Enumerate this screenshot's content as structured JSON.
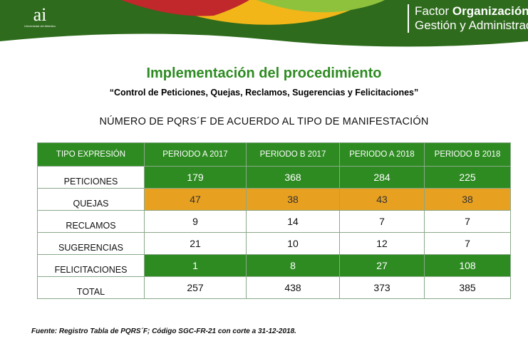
{
  "header": {
    "logo_mark": "ai",
    "logo_subtitle": "Universidad del Atlántico",
    "factor_line1_plain": "Factor ",
    "factor_line1_bold": "Organización,",
    "factor_line2": "Gestión y Administración",
    "colors": {
      "dark_green": "#2e6b1c",
      "light_green": "#8fc23c",
      "red": "#c0282b",
      "yellow": "#f2b619"
    }
  },
  "title": "Implementación del procedimiento",
  "subtitle": "“Control de Peticiones, Quejas, Reclamos,  Sugerencias y Felicitaciones”",
  "table_title": "NÚMERO DE PQRS´F DE ACUERDO AL TIPO DE MANIFESTACIÓN",
  "table": {
    "headers": [
      "TIPO EXPRESIÓN",
      "PERIODO A 2017",
      "PERIODO B 2017",
      "PERIODO A 2018",
      "PERIODO B 2018"
    ],
    "rows": [
      {
        "label": "PETICIONES",
        "values": [
          "179",
          "368",
          "284",
          "225"
        ],
        "highlight": "green"
      },
      {
        "label": "QUEJAS",
        "values": [
          "47",
          "38",
          "43",
          "38"
        ],
        "highlight": "orange"
      },
      {
        "label": "RECLAMOS",
        "values": [
          "9",
          "14",
          "7",
          "7"
        ],
        "highlight": "none"
      },
      {
        "label": "SUGERENCIAS",
        "values": [
          "21",
          "10",
          "12",
          "7"
        ],
        "highlight": "none"
      },
      {
        "label": "FELICITACIONES",
        "values": [
          "1",
          "8",
          "27",
          "108"
        ],
        "highlight": "green"
      },
      {
        "label": "TOTAL",
        "values": [
          "257",
          "438",
          "373",
          "385"
        ],
        "highlight": "none"
      }
    ],
    "colors": {
      "header_bg": "#2e8b22",
      "green_bg": "#2e8b22",
      "orange_bg": "#e8a020"
    }
  },
  "source": "Fuente: Registro Tabla de PQRS´F; Código SGC-FR-21 con corte a 31-12-2018."
}
